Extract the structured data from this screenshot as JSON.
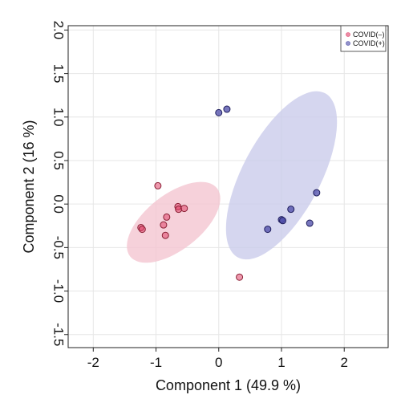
{
  "chart_data": {
    "type": "scatter",
    "xlabel": "Component 1 (49.9 %)",
    "ylabel": "Component 2 (16 %)",
    "xlim": [
      -2.4,
      2.7
    ],
    "ylim": [
      -1.65,
      2.05
    ],
    "x_ticks": [
      -2,
      -1,
      0,
      1,
      2
    ],
    "x_tick_labels": [
      "-2",
      "-1",
      "0",
      "1",
      "2"
    ],
    "y_ticks": [
      -1.5,
      -1.0,
      -0.5,
      0.0,
      0.5,
      1.0,
      1.5,
      2.0
    ],
    "y_tick_labels": [
      "-1.5",
      "-1.0",
      "-0.5",
      "0.0",
      "0.5",
      "1.0",
      "1.5",
      "2.0"
    ],
    "grid": true,
    "legend_position": "top-right",
    "series": [
      {
        "name": "COVID(–)",
        "color": "#e0436a",
        "ellipse_color": "#f4c4cf",
        "points": [
          {
            "x": -0.97,
            "y": 0.21
          },
          {
            "x": -1.24,
            "y": -0.27
          },
          {
            "x": -1.22,
            "y": -0.29
          },
          {
            "x": -0.83,
            "y": -0.15
          },
          {
            "x": -0.88,
            "y": -0.24
          },
          {
            "x": -0.65,
            "y": -0.03
          },
          {
            "x": -0.64,
            "y": -0.06
          },
          {
            "x": -0.55,
            "y": -0.05
          },
          {
            "x": -0.85,
            "y": -0.36
          },
          {
            "x": 0.33,
            "y": -0.84
          }
        ],
        "ellipse": {
          "cx": -0.72,
          "cy": -0.21,
          "rx": 0.88,
          "ry": 0.44,
          "angle_deg": -38
        }
      },
      {
        "name": "COVID(+)",
        "color": "#4b4aa8",
        "ellipse_color": "#c9cbea",
        "points": [
          {
            "x": 0.0,
            "y": 1.05
          },
          {
            "x": 0.13,
            "y": 1.09
          },
          {
            "x": 0.78,
            "y": -0.29
          },
          {
            "x": 1.0,
            "y": -0.18
          },
          {
            "x": 1.02,
            "y": -0.19
          },
          {
            "x": 1.15,
            "y": -0.06
          },
          {
            "x": 1.45,
            "y": -0.22
          },
          {
            "x": 1.56,
            "y": 0.13
          }
        ],
        "ellipse": {
          "cx": 1.0,
          "cy": 0.33,
          "rx": 1.48,
          "ry": 0.62,
          "angle_deg": -62
        }
      }
    ]
  }
}
